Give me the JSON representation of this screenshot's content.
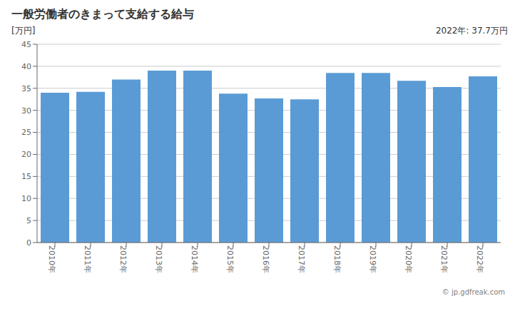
{
  "chart_data": {
    "type": "bar",
    "title": "一般労働者のきまって支給する給与",
    "ylabel": "[万円]",
    "annotations": [
      "2022年: 37.7万円",
      "© jp.gdfreak.com"
    ],
    "categories": [
      "2010年",
      "2011年",
      "2012年",
      "2013年",
      "2014年",
      "2015年",
      "2016年",
      "2017年",
      "2018年",
      "2019年",
      "2020年",
      "2021年",
      "2022年"
    ],
    "values": [
      34.0,
      34.2,
      37.0,
      39.0,
      39.0,
      33.8,
      32.7,
      32.5,
      38.5,
      38.5,
      36.7,
      35.3,
      37.7
    ],
    "color": "#5b9bd5",
    "ylim": [
      0,
      45
    ],
    "yticks": [
      0,
      5,
      10,
      15,
      20,
      25,
      30,
      35,
      40,
      45
    ],
    "grid": true
  }
}
